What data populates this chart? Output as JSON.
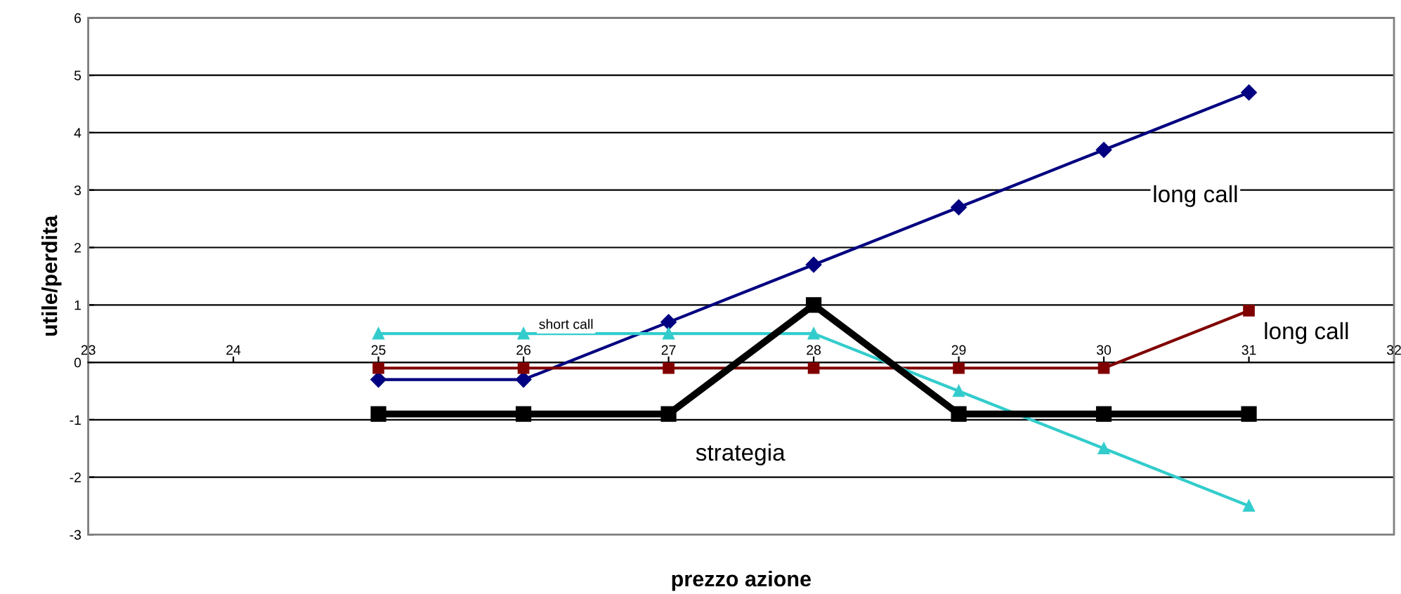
{
  "chart_data": {
    "type": "line",
    "xlabel": "prezzo azione",
    "ylabel": "utile/perdita",
    "xlim": [
      23,
      32
    ],
    "xticks": [
      23,
      24,
      25,
      26,
      27,
      28,
      29,
      30,
      31,
      32
    ],
    "ylim": [
      -3,
      6
    ],
    "yticks": [
      -3,
      -2,
      -1,
      0,
      1,
      2,
      3,
      4,
      5,
      6
    ],
    "grid": "y",
    "x": [
      25,
      26,
      27,
      28,
      29,
      30,
      31
    ],
    "series": [
      {
        "color": "#000080",
        "marker": "diamond",
        "values": [
          -0.3,
          -0.3,
          0.7,
          1.7,
          2.7,
          3.7,
          4.7
        ]
      },
      {
        "color": "#800000",
        "marker": "square",
        "values": [
          -0.1,
          -0.1,
          -0.1,
          -0.1,
          -0.1,
          -0.1,
          0.9
        ]
      },
      {
        "color": "#33cccc",
        "marker": "triangle",
        "values": [
          0.5,
          0.5,
          0.5,
          0.5,
          -0.5,
          -1.5,
          -2.5
        ]
      },
      {
        "color": "#000000",
        "marker": "square",
        "values": [
          -0.9,
          -0.9,
          -0.9,
          1.0,
          -0.9,
          -0.9,
          -0.9
        ]
      }
    ],
    "annotations": [
      "long call",
      "long call",
      "short call",
      "strategia"
    ]
  }
}
